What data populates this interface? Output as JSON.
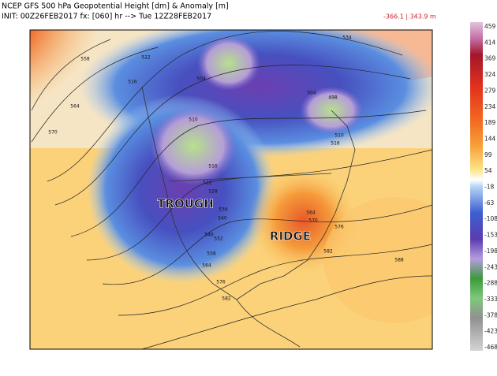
{
  "header": {
    "line1": "NCEP GFS 500 hPa Geopotential Height [dm] & Anomaly [m]",
    "line2": "INIT: 00Z26FEB2017  fx: [060] hr --> Tue 12Z28FEB2017",
    "range": "-366.1 | 343.9 m"
  },
  "map": {
    "annotations": [
      "TROUGH",
      "RIDGE"
    ],
    "contour_labels": [
      "558",
      "564",
      "570",
      "522",
      "516",
      "510",
      "504",
      "498",
      "504",
      "534",
      "516",
      "522",
      "528",
      "534",
      "540",
      "546",
      "552",
      "558",
      "564",
      "576",
      "582",
      "564",
      "570",
      "576",
      "582",
      "588",
      "510",
      "516"
    ]
  },
  "colorbar": {
    "labels": [
      459,
      414,
      369,
      324,
      279,
      234,
      189,
      144,
      99,
      54,
      -18,
      -63,
      -108,
      -153,
      -198,
      -243,
      -288,
      -333,
      -378,
      -423,
      -468
    ]
  }
}
